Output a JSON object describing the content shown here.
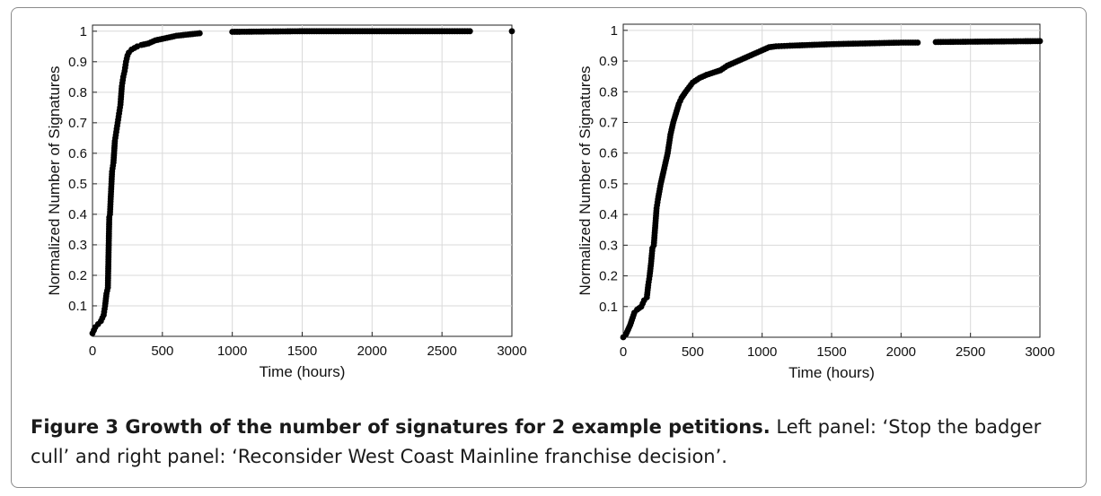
{
  "chart_data": [
    {
      "type": "scatter",
      "title": "",
      "xlabel": "Time (hours)",
      "ylabel": "Normalized Number of Signatures",
      "xlim": [
        0,
        3000
      ],
      "ylim": [
        0,
        1.02
      ],
      "xticks": [
        0,
        500,
        1000,
        1500,
        2000,
        2500,
        3000
      ],
      "yticks": [
        0.1,
        0.2,
        0.3,
        0.4,
        0.5,
        0.6,
        0.7,
        0.8,
        0.9,
        1
      ],
      "grid": true,
      "legend": "none",
      "marker_color": "#000000",
      "series": [
        {
          "x": [
            0,
            20,
            40,
            60,
            80,
            90,
            100,
            110,
            120,
            125,
            130,
            140,
            150,
            160,
            170,
            180,
            190,
            200,
            210,
            220,
            230,
            240,
            250,
            260,
            280,
            300,
            320,
            350,
            400,
            450,
            500,
            600,
            700,
            800,
            1000,
            1500,
            2000,
            2500,
            2700,
            2800,
            3000
          ],
          "y": [
            0.01,
            0.03,
            0.04,
            0.05,
            0.07,
            0.1,
            0.14,
            0.16,
            0.39,
            0.4,
            0.45,
            0.54,
            0.57,
            0.64,
            0.67,
            0.7,
            0.73,
            0.76,
            0.82,
            0.85,
            0.87,
            0.9,
            0.92,
            0.93,
            0.94,
            0.945,
            0.95,
            0.955,
            0.96,
            0.97,
            0.975,
            0.985,
            0.99,
            0.995,
            0.998,
            1,
            1,
            1,
            1,
            1,
            1
          ],
          "gaps_x": [
            [
              780,
              850
            ],
            [
              2700,
              2810
            ]
          ]
        }
      ]
    },
    {
      "type": "scatter",
      "title": "",
      "xlabel": "Time (hours)",
      "ylabel": "Normalized Number of Signatures",
      "xlim": [
        0,
        3000
      ],
      "ylim": [
        0,
        1.02
      ],
      "xticks": [
        0,
        500,
        1000,
        1500,
        2000,
        2500,
        3000
      ],
      "yticks": [
        0.1,
        0.2,
        0.3,
        0.4,
        0.5,
        0.6,
        0.7,
        0.8,
        0.9,
        1
      ],
      "grid": true,
      "legend": "none",
      "marker_color": "#000000",
      "series": [
        {
          "x": [
            0,
            20,
            50,
            80,
            100,
            130,
            150,
            170,
            180,
            190,
            200,
            210,
            220,
            240,
            250,
            270,
            300,
            320,
            340,
            360,
            380,
            400,
            420,
            450,
            500,
            550,
            600,
            700,
            750,
            800,
            850,
            900,
            950,
            1000,
            1050,
            1100,
            1200,
            1500,
            2000,
            2120,
            2250,
            2500,
            3000
          ],
          "y": [
            0.0,
            0.01,
            0.04,
            0.08,
            0.09,
            0.1,
            0.12,
            0.13,
            0.17,
            0.2,
            0.24,
            0.29,
            0.3,
            0.42,
            0.45,
            0.5,
            0.56,
            0.6,
            0.66,
            0.7,
            0.73,
            0.76,
            0.78,
            0.8,
            0.83,
            0.845,
            0.855,
            0.87,
            0.885,
            0.895,
            0.905,
            0.915,
            0.925,
            0.935,
            0.945,
            0.948,
            0.95,
            0.955,
            0.96,
            0.96,
            0.962,
            0.963,
            0.965
          ],
          "gaps_x": [
            [
              2130,
              2240
            ]
          ]
        }
      ]
    }
  ],
  "caption": {
    "bold": "Figure 3  Growth of the number of signatures for 2 example petitions.",
    "rest": " Left panel: ‘Stop the badger cull’ and right panel: ‘Reconsider West Coast Mainline franchise decision’."
  }
}
